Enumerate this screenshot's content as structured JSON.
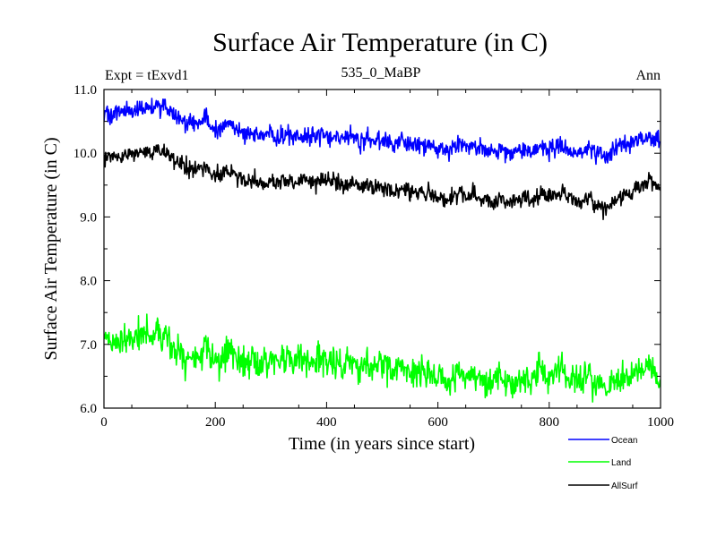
{
  "chart_data": {
    "type": "line",
    "title": "Surface Air Temperature (in C)",
    "subtitle_left": "Expt = tExvd1",
    "subtitle_center": "535_0_MaBP",
    "subtitle_right": "Ann",
    "xlabel": "Time (in years since start)",
    "ylabel": "Surface Air Temperature (in C)",
    "xlim": [
      0,
      1000
    ],
    "ylim": [
      6.0,
      11.0
    ],
    "xticks": [
      0,
      200,
      400,
      600,
      800,
      1000
    ],
    "xtick_labels": [
      "0",
      "200",
      "400",
      "600",
      "800",
      "1000"
    ],
    "yticks": [
      6.0,
      7.0,
      8.0,
      9.0,
      10.0,
      11.0
    ],
    "ytick_labels": [
      "6.0",
      "7.0",
      "8.0",
      "9.0",
      "10.0",
      "11.0"
    ],
    "legend_position": "bottom-right, below plot",
    "series": [
      {
        "name": "Ocean",
        "color": "#0000ff",
        "noise": 0.09,
        "x": [
          0,
          25,
          50,
          75,
          100,
          125,
          150,
          175,
          200,
          225,
          250,
          275,
          300,
          325,
          350,
          375,
          400,
          425,
          450,
          475,
          500,
          525,
          550,
          575,
          600,
          625,
          650,
          675,
          700,
          725,
          750,
          775,
          800,
          825,
          850,
          875,
          900,
          925,
          950,
          975,
          1000
        ],
        "values": [
          10.57,
          10.62,
          10.66,
          10.7,
          10.74,
          10.62,
          10.52,
          10.48,
          10.45,
          10.38,
          10.32,
          10.3,
          10.28,
          10.25,
          10.26,
          10.3,
          10.24,
          10.22,
          10.25,
          10.2,
          10.17,
          10.14,
          10.15,
          10.12,
          10.1,
          10.11,
          10.12,
          10.08,
          10.04,
          10.06,
          10.08,
          10.05,
          10.1,
          10.08,
          10.02,
          10.05,
          9.98,
          10.12,
          10.2,
          10.26,
          10.18
        ]
      },
      {
        "name": "Land",
        "color": "#00ff00",
        "noise": 0.15,
        "x": [
          0,
          25,
          50,
          75,
          100,
          125,
          150,
          175,
          200,
          225,
          250,
          275,
          300,
          325,
          350,
          375,
          400,
          425,
          450,
          475,
          500,
          525,
          550,
          575,
          600,
          625,
          650,
          675,
          700,
          725,
          750,
          775,
          800,
          825,
          850,
          875,
          900,
          925,
          950,
          975,
          1000
        ],
        "values": [
          7.0,
          7.03,
          7.08,
          7.12,
          7.15,
          6.98,
          6.85,
          6.86,
          6.84,
          6.82,
          6.76,
          6.7,
          6.68,
          6.7,
          6.75,
          6.78,
          6.72,
          6.66,
          6.7,
          6.65,
          6.62,
          6.6,
          6.6,
          6.56,
          6.52,
          6.55,
          6.56,
          6.5,
          6.44,
          6.48,
          6.54,
          6.5,
          6.56,
          6.55,
          6.46,
          6.44,
          6.36,
          6.46,
          6.55,
          6.64,
          6.4
        ]
      },
      {
        "name": "AllSurf",
        "color": "#000000",
        "noise": 0.08,
        "x": [
          0,
          25,
          50,
          75,
          100,
          125,
          150,
          175,
          200,
          225,
          250,
          275,
          300,
          325,
          350,
          375,
          400,
          425,
          450,
          475,
          500,
          525,
          550,
          575,
          600,
          625,
          650,
          675,
          700,
          725,
          750,
          775,
          800,
          825,
          850,
          875,
          900,
          925,
          950,
          975,
          1000
        ],
        "values": [
          9.9,
          9.95,
          9.99,
          10.02,
          10.05,
          9.92,
          9.78,
          9.74,
          9.7,
          9.64,
          9.58,
          9.54,
          9.52,
          9.52,
          9.56,
          9.62,
          9.54,
          9.48,
          9.52,
          9.47,
          9.43,
          9.4,
          9.4,
          9.36,
          9.33,
          9.35,
          9.36,
          9.31,
          9.25,
          9.28,
          9.33,
          9.29,
          9.36,
          9.34,
          9.26,
          9.27,
          9.16,
          9.28,
          9.4,
          9.55,
          9.45
        ]
      }
    ]
  }
}
